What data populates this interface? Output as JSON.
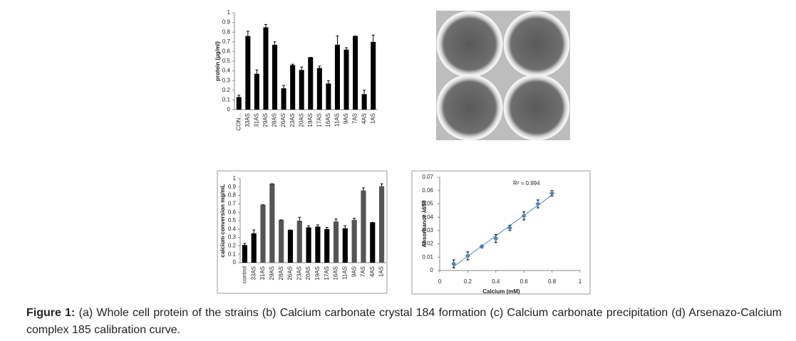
{
  "chart_data": [
    {
      "type": "bar",
      "ylabel": "protein (µg/ml)",
      "categories": [
        "CON...",
        "33AS",
        "31AS",
        "29AS",
        "28AS",
        "26AS",
        "23AS",
        "20AS",
        "19AS",
        "17AS",
        "16AS",
        "11AS",
        "9AS",
        "7AS",
        "4AS",
        "1AS"
      ],
      "values": [
        0.13,
        0.76,
        0.37,
        0.85,
        0.67,
        0.22,
        0.46,
        0.41,
        0.54,
        0.43,
        0.27,
        0.67,
        0.62,
        0.76,
        0.16,
        0.7
      ],
      "errors": [
        0.02,
        0.05,
        0.04,
        0.03,
        0.03,
        0.03,
        0.01,
        0.03,
        0,
        0.02,
        0.03,
        0.09,
        0.02,
        0,
        0.04,
        0.07
      ],
      "color": "#000000",
      "ylim": [
        0,
        1
      ],
      "yticks": [
        0,
        0.1,
        0.2,
        0.3,
        0.4,
        0.5,
        0.6,
        0.7,
        0.8,
        0.9,
        1
      ]
    },
    {
      "type": "bar",
      "ylabel": "calcium conversion mg/mL",
      "categories": [
        "control",
        "33AS",
        "31AS",
        "29AS",
        "28AS",
        "26AS",
        "23AS",
        "20AS",
        "19AS",
        "17AS",
        "16AS",
        "11AS",
        "9AS",
        "7AS",
        "4AS",
        "1AS"
      ],
      "values": [
        0.21,
        0.35,
        0.69,
        0.94,
        0.51,
        0.39,
        0.5,
        0.42,
        0.43,
        0.4,
        0.49,
        0.41,
        0.51,
        0.86,
        0.48,
        0.91
      ],
      "errors": [
        0.02,
        0.04,
        0,
        0,
        0,
        0,
        0.04,
        0.02,
        0.02,
        0.02,
        0.03,
        0.03,
        0.02,
        0.03,
        0,
        0.03
      ],
      "colors": [
        "#000000",
        "#000000",
        "#555555",
        "#555555",
        "#555555",
        "#000000",
        "#555555",
        "#000000",
        "#000000",
        "#000000",
        "#555555",
        "#000000",
        "#555555",
        "#555555",
        "#000000",
        "#555555"
      ],
      "ylim": [
        0,
        1
      ],
      "yticks": [
        0,
        0.1,
        0.2,
        0.3,
        0.4,
        0.5,
        0.6,
        0.7,
        0.8,
        0.9,
        1
      ]
    },
    {
      "type": "scatter",
      "xlabel": "Calcium (mM)",
      "ylabel": "Absorbance λ650",
      "annotation": "R² = 0.994",
      "x": [
        0.1,
        0.2,
        0.3,
        0.4,
        0.5,
        0.6,
        0.7,
        0.8
      ],
      "values": [
        0.005,
        0.011,
        0.018,
        0.024,
        0.032,
        0.041,
        0.05,
        0.058
      ],
      "errors": [
        0.003,
        0.003,
        0.001,
        0.003,
        0.002,
        0.003,
        0.003,
        0.002
      ],
      "color": "#4f81bd",
      "trendline": true,
      "xlim": [
        0,
        1
      ],
      "xticks": [
        0,
        0.2,
        0.4,
        0.6,
        0.8,
        1
      ],
      "ylim": [
        0,
        0.07
      ],
      "yticks": [
        0,
        0.01,
        0.02,
        0.03,
        0.04,
        0.05,
        0.06,
        0.07
      ]
    }
  ],
  "caption_label": "Figure 1:",
  "caption": "(a) Whole cell protein of the strains (b) Calcium carbonate crystal 184 formation (c) Calcium carbonate precipitation (d) Arsenazo-Calcium complex 185 calibration curve."
}
